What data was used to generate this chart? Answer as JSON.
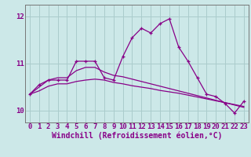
{
  "x": [
    0,
    1,
    2,
    3,
    4,
    5,
    6,
    7,
    8,
    9,
    10,
    11,
    12,
    13,
    14,
    15,
    16,
    17,
    18,
    19,
    20,
    21,
    22,
    23
  ],
  "line1": [
    10.35,
    10.55,
    10.65,
    10.65,
    10.65,
    11.05,
    11.05,
    11.05,
    10.7,
    10.65,
    11.15,
    11.55,
    11.75,
    11.65,
    11.85,
    11.95,
    11.35,
    11.05,
    10.7,
    10.35,
    10.3,
    10.15,
    9.95,
    10.2
  ],
  "line2": [
    10.35,
    10.5,
    10.65,
    10.7,
    10.7,
    10.85,
    10.92,
    10.92,
    10.82,
    10.75,
    10.72,
    10.67,
    10.62,
    10.57,
    10.52,
    10.47,
    10.42,
    10.37,
    10.32,
    10.27,
    10.22,
    10.17,
    10.12,
    10.07
  ],
  "line3": [
    10.35,
    10.42,
    10.52,
    10.57,
    10.57,
    10.62,
    10.65,
    10.67,
    10.65,
    10.6,
    10.57,
    10.53,
    10.5,
    10.47,
    10.43,
    10.4,
    10.37,
    10.33,
    10.29,
    10.25,
    10.21,
    10.17,
    10.13,
    10.09
  ],
  "line_color": "#880088",
  "bg_color": "#cce8e8",
  "grid_color": "#aacccc",
  "xlabel": "Windchill (Refroidissement éolien,°C)",
  "ylim": [
    9.75,
    12.25
  ],
  "xlim": [
    -0.5,
    23.5
  ],
  "yticks": [
    10,
    11,
    12
  ],
  "xticks": [
    0,
    1,
    2,
    3,
    4,
    5,
    6,
    7,
    8,
    9,
    10,
    11,
    12,
    13,
    14,
    15,
    16,
    17,
    18,
    19,
    20,
    21,
    22,
    23
  ],
  "xlabel_fontsize": 7,
  "tick_fontsize": 6.5
}
